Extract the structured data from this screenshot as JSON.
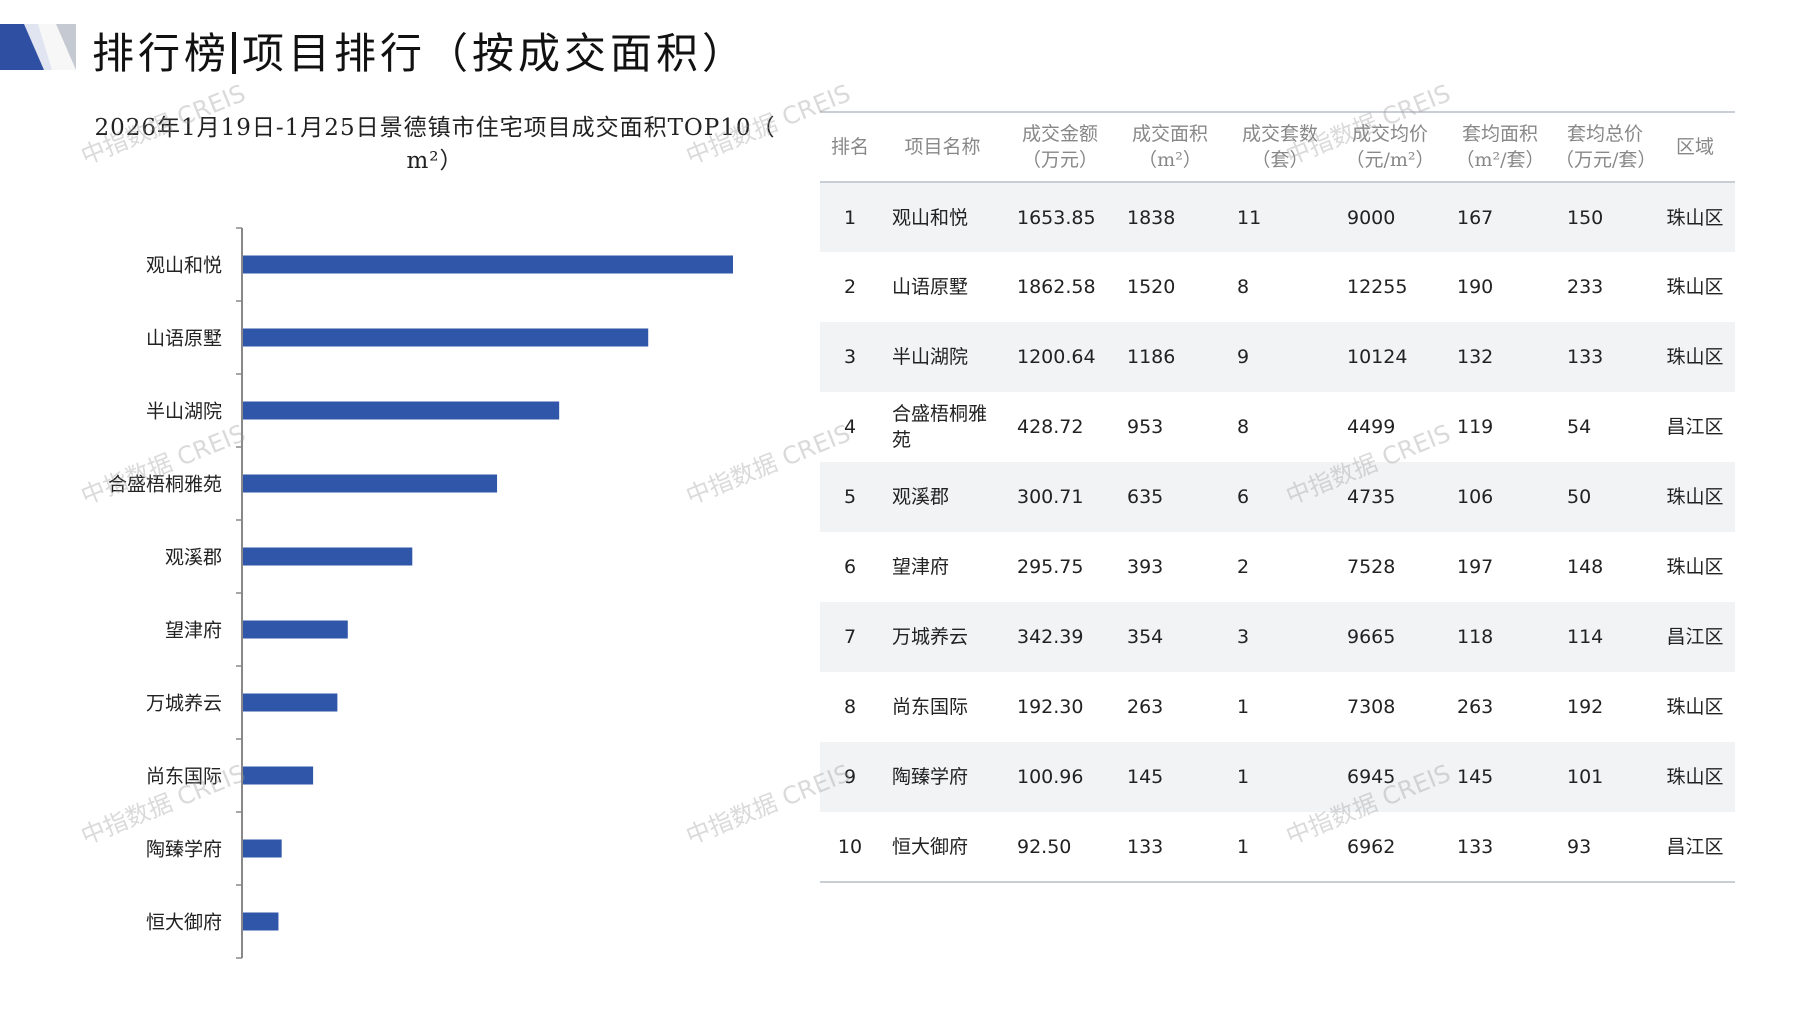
{
  "header": {
    "title_left": "排行榜",
    "title_right": "项目排行（按成交面积）",
    "brand_colors": {
      "dark": "#2f4fa2",
      "light": "#c5c9d2"
    }
  },
  "chart_data": {
    "type": "bar",
    "orientation": "horizontal",
    "title_line1": "2026年1月19日-1月25日景德镇市住宅项目成交面积TOP10（",
    "title_line2": "m²）",
    "categories": [
      "观山和悦",
      "山语原墅",
      "半山湖院",
      "合盛梧桐雅苑",
      "观溪郡",
      "望津府",
      "万城养云",
      "尚东国际",
      "陶臻学府",
      "恒大御府"
    ],
    "values": [
      1838,
      1520,
      1186,
      953,
      635,
      393,
      354,
      263,
      145,
      133
    ],
    "bar_color": "#2f56a8",
    "xlim": [
      0,
      1838
    ],
    "grid": false,
    "legend": "none"
  },
  "table": {
    "headers": [
      {
        "line1": "排名",
        "line2": ""
      },
      {
        "line1": "项目名称",
        "line2": ""
      },
      {
        "line1": "成交金额",
        "line2": "（万元）"
      },
      {
        "line1": "成交面积",
        "line2": "（m²）"
      },
      {
        "line1": "成交套数",
        "line2": "（套）"
      },
      {
        "line1": "成交均价",
        "line2": "（元/m²）"
      },
      {
        "line1": "套均面积",
        "line2": "（m²/套）"
      },
      {
        "line1": "套均总价",
        "line2": "（万元/套）"
      },
      {
        "line1": "区域",
        "line2": ""
      }
    ],
    "rows": [
      [
        "1",
        "观山和悦",
        "1653.85",
        "1838",
        "11",
        "9000",
        "167",
        "150",
        "珠山区"
      ],
      [
        "2",
        "山语原墅",
        "1862.58",
        "1520",
        "8",
        "12255",
        "190",
        "233",
        "珠山区"
      ],
      [
        "3",
        "半山湖院",
        "1200.64",
        "1186",
        "9",
        "10124",
        "132",
        "133",
        "珠山区"
      ],
      [
        "4",
        "合盛梧桐雅苑",
        "428.72",
        "953",
        "8",
        "4499",
        "119",
        "54",
        "昌江区"
      ],
      [
        "5",
        "观溪郡",
        "300.71",
        "635",
        "6",
        "4735",
        "106",
        "50",
        "珠山区"
      ],
      [
        "6",
        "望津府",
        "295.75",
        "393",
        "2",
        "7528",
        "197",
        "148",
        "珠山区"
      ],
      [
        "7",
        "万城养云",
        "342.39",
        "354",
        "3",
        "9665",
        "118",
        "114",
        "昌江区"
      ],
      [
        "8",
        "尚东国际",
        "192.30",
        "263",
        "1",
        "7308",
        "263",
        "192",
        "珠山区"
      ],
      [
        "9",
        "陶臻学府",
        "100.96",
        "145",
        "1",
        "6945",
        "145",
        "101",
        "珠山区"
      ],
      [
        "10",
        "恒大御府",
        "92.50",
        "133",
        "1",
        "6962",
        "133",
        "93",
        "昌江区"
      ]
    ]
  },
  "watermark": "中指数据 CREIS"
}
